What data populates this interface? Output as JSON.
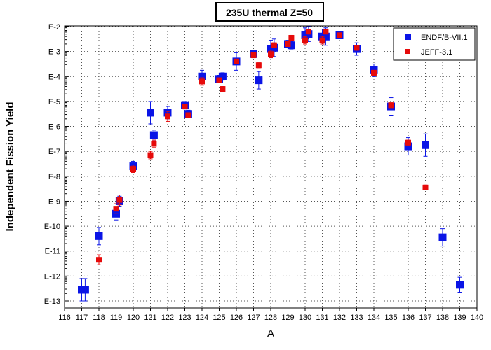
{
  "chart_data": {
    "type": "scatter",
    "title": "235U thermal Z=50",
    "xlabel": "A",
    "ylabel": "Independent Fission Yield",
    "xlim": [
      116,
      140
    ],
    "y_scale": "log",
    "ylim_exp": [
      -13,
      -2
    ],
    "xticks": [
      116,
      117,
      118,
      119,
      120,
      121,
      122,
      123,
      124,
      125,
      126,
      127,
      128,
      129,
      130,
      131,
      132,
      133,
      134,
      135,
      136,
      137,
      138,
      139,
      140
    ],
    "yticks": [
      {
        "exp": -2,
        "label": "E-2"
      },
      {
        "exp": -3,
        "label": "E-3"
      },
      {
        "exp": -4,
        "label": "E-4"
      },
      {
        "exp": -5,
        "label": "E-5"
      },
      {
        "exp": -6,
        "label": "E-6"
      },
      {
        "exp": -7,
        "label": "E-7"
      },
      {
        "exp": -8,
        "label": "E-8"
      },
      {
        "exp": -9,
        "label": "E-9"
      },
      {
        "exp": -10,
        "label": "E-10"
      },
      {
        "exp": -11,
        "label": "E-11"
      },
      {
        "exp": -12,
        "label": "E-12"
      },
      {
        "exp": -13,
        "label": "E-13"
      }
    ],
    "grid": true,
    "legend_position": "top-right",
    "series": [
      {
        "name": "ENDF/B-VII.1",
        "color": "#0a14e6",
        "marker": "square",
        "points": [
          {
            "x": 117,
            "y": -12.55,
            "err": 0.45
          },
          {
            "x": 117.2,
            "y": -12.55,
            "err": 0.45
          },
          {
            "x": 118,
            "y": -10.4,
            "err": 0.35
          },
          {
            "x": 119,
            "y": -9.5,
            "err": 0.25
          },
          {
            "x": 119.2,
            "y": -9.0,
            "err": 0.2
          },
          {
            "x": 120,
            "y": -7.6,
            "err": 0.2
          },
          {
            "x": 121,
            "y": -5.45,
            "err": 0.45
          },
          {
            "x": 121.2,
            "y": -6.35,
            "err": 0.2
          },
          {
            "x": 122,
            "y": -5.45,
            "err": 0.25
          },
          {
            "x": 123,
            "y": -5.15,
            "err": 0.15
          },
          {
            "x": 123.2,
            "y": -5.5,
            "err": 0.15
          },
          {
            "x": 124,
            "y": -4.0,
            "err": 0.25
          },
          {
            "x": 125,
            "y": -4.1,
            "err": 0.15
          },
          {
            "x": 125.2,
            "y": -4.0,
            "err": 0.15
          },
          {
            "x": 126,
            "y": -3.4,
            "err": 0.35
          },
          {
            "x": 127,
            "y": -3.1,
            "err": 0.15
          },
          {
            "x": 127.3,
            "y": -4.15,
            "err": 0.35
          },
          {
            "x": 128,
            "y": -2.9,
            "err": 0.35
          },
          {
            "x": 128.2,
            "y": -2.85,
            "err": 0.35
          },
          {
            "x": 129,
            "y": -2.7,
            "err": 0.15
          },
          {
            "x": 129.2,
            "y": -2.75,
            "err": 0.15
          },
          {
            "x": 130,
            "y": -2.35,
            "err": 0.3
          },
          {
            "x": 130.2,
            "y": -2.3,
            "err": 0.3
          },
          {
            "x": 131,
            "y": -2.4,
            "err": 0.3
          },
          {
            "x": 131.2,
            "y": -2.4,
            "err": 0.35
          },
          {
            "x": 132,
            "y": -2.35,
            "err": 0.1
          },
          {
            "x": 133,
            "y": -2.9,
            "err": 0.25
          },
          {
            "x": 134,
            "y": -3.75,
            "err": 0.25
          },
          {
            "x": 135,
            "y": -5.2,
            "err": 0.35
          },
          {
            "x": 136,
            "y": -6.8,
            "err": 0.35
          },
          {
            "x": 137,
            "y": -6.75,
            "err": 0.45
          },
          {
            "x": 138,
            "y": -10.45,
            "err": 0.35
          },
          {
            "x": 139,
            "y": -12.35,
            "err": 0.3
          }
        ]
      },
      {
        "name": "JEFF-3.1",
        "color": "#e60a0a",
        "marker": "square",
        "points": [
          {
            "x": 118,
            "y": -11.35,
            "err": 0.2
          },
          {
            "x": 119,
            "y": -9.3,
            "err": 0.2
          },
          {
            "x": 119.2,
            "y": -8.95,
            "err": 0.2
          },
          {
            "x": 120,
            "y": -7.7,
            "err": 0.15
          },
          {
            "x": 121,
            "y": -7.15,
            "err": 0.15
          },
          {
            "x": 121.2,
            "y": -6.7,
            "err": 0.15
          },
          {
            "x": 122,
            "y": -5.6,
            "err": 0.2
          },
          {
            "x": 123,
            "y": -5.2,
            "err": 0.1
          },
          {
            "x": 123.2,
            "y": -5.55,
            "err": 0.1
          },
          {
            "x": 124,
            "y": -4.2,
            "err": 0.15
          },
          {
            "x": 125,
            "y": -4.15,
            "err": 0.1
          },
          {
            "x": 125.2,
            "y": -4.5,
            "err": 0.1
          },
          {
            "x": 126,
            "y": -3.4,
            "err": 0.1
          },
          {
            "x": 127,
            "y": -3.15,
            "err": 0.1
          },
          {
            "x": 127.3,
            "y": -3.55,
            "err": 0.1
          },
          {
            "x": 128,
            "y": -3.1,
            "err": 0.15
          },
          {
            "x": 128.2,
            "y": -2.75,
            "err": 0.1
          },
          {
            "x": 129,
            "y": -2.7,
            "err": 0.1
          },
          {
            "x": 129.2,
            "y": -2.45,
            "err": 0.1
          },
          {
            "x": 130,
            "y": -2.55,
            "err": 0.15
          },
          {
            "x": 130.2,
            "y": -2.2,
            "err": 0.1
          },
          {
            "x": 131,
            "y": -2.55,
            "err": 0.15
          },
          {
            "x": 131.2,
            "y": -2.2,
            "err": 0.1
          },
          {
            "x": 132,
            "y": -2.35,
            "err": 0.1
          },
          {
            "x": 133,
            "y": -2.85,
            "err": 0.1
          },
          {
            "x": 134,
            "y": -3.85,
            "err": 0.1
          },
          {
            "x": 135,
            "y": -5.15,
            "err": 0.1
          },
          {
            "x": 136,
            "y": -6.65,
            "err": 0.1
          },
          {
            "x": 137,
            "y": -8.45,
            "err": 0.1
          }
        ]
      }
    ]
  }
}
